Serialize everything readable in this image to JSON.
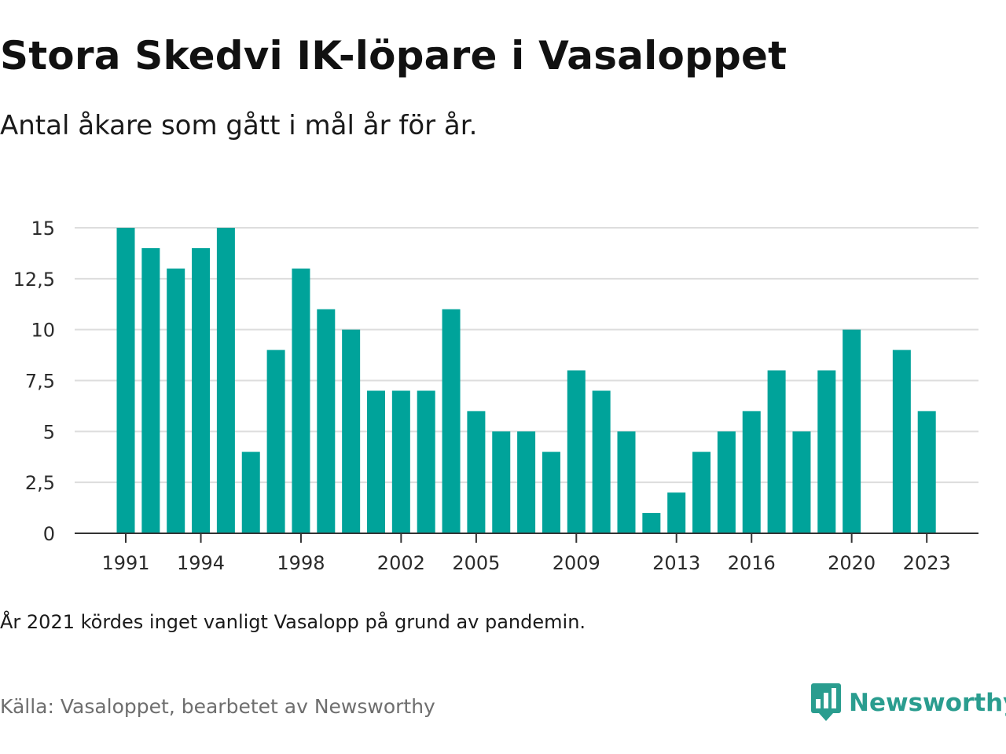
{
  "header": {
    "title": "Stora Skedvi IK-löpare i Vasaloppet",
    "subtitle": "Antal åkare som gått i mål år för år."
  },
  "footer": {
    "note": "År 2021 kördes inget vanligt Vasalopp på grund av pandemin.",
    "source": "Källa: Vasaloppet, bearbetet av Newsworthy",
    "brand": "Newsworthy",
    "brand_icon": "newsworthy-logo-icon"
  },
  "colors": {
    "bar": "#00a39a",
    "grid": "#dddddd",
    "axis": "#333333",
    "brand": "#2a9d8f"
  },
  "chart_data": {
    "type": "bar",
    "categories": [
      "1991",
      "1992",
      "1993",
      "1994",
      "1995",
      "1996",
      "1997",
      "1998",
      "1999",
      "2000",
      "2001",
      "2002",
      "2003",
      "2004",
      "2005",
      "2006",
      "2007",
      "2008",
      "2009",
      "2010",
      "2011",
      "2012",
      "2013",
      "2014",
      "2015",
      "2016",
      "2017",
      "2018",
      "2019",
      "2020",
      "2021",
      "2022",
      "2023"
    ],
    "values": [
      15,
      14,
      13,
      14,
      15,
      4,
      9,
      13,
      11,
      10,
      7,
      7,
      7,
      11,
      6,
      5,
      5,
      4,
      8,
      7,
      5,
      1,
      2,
      4,
      5,
      6,
      8,
      5,
      8,
      10,
      null,
      9,
      6
    ],
    "x_tick_labels": [
      "1991",
      "1994",
      "1998",
      "2002",
      "2005",
      "2009",
      "2013",
      "2016",
      "2020",
      "2023"
    ],
    "y_ticks": [
      0,
      2.5,
      5,
      7.5,
      10,
      12.5,
      15
    ],
    "y_tick_labels": [
      "0",
      "2,5",
      "5",
      "7,5",
      "10",
      "12,5",
      "15"
    ],
    "ylim": [
      0,
      15
    ],
    "grid": true,
    "xlabel": "",
    "ylabel": ""
  }
}
